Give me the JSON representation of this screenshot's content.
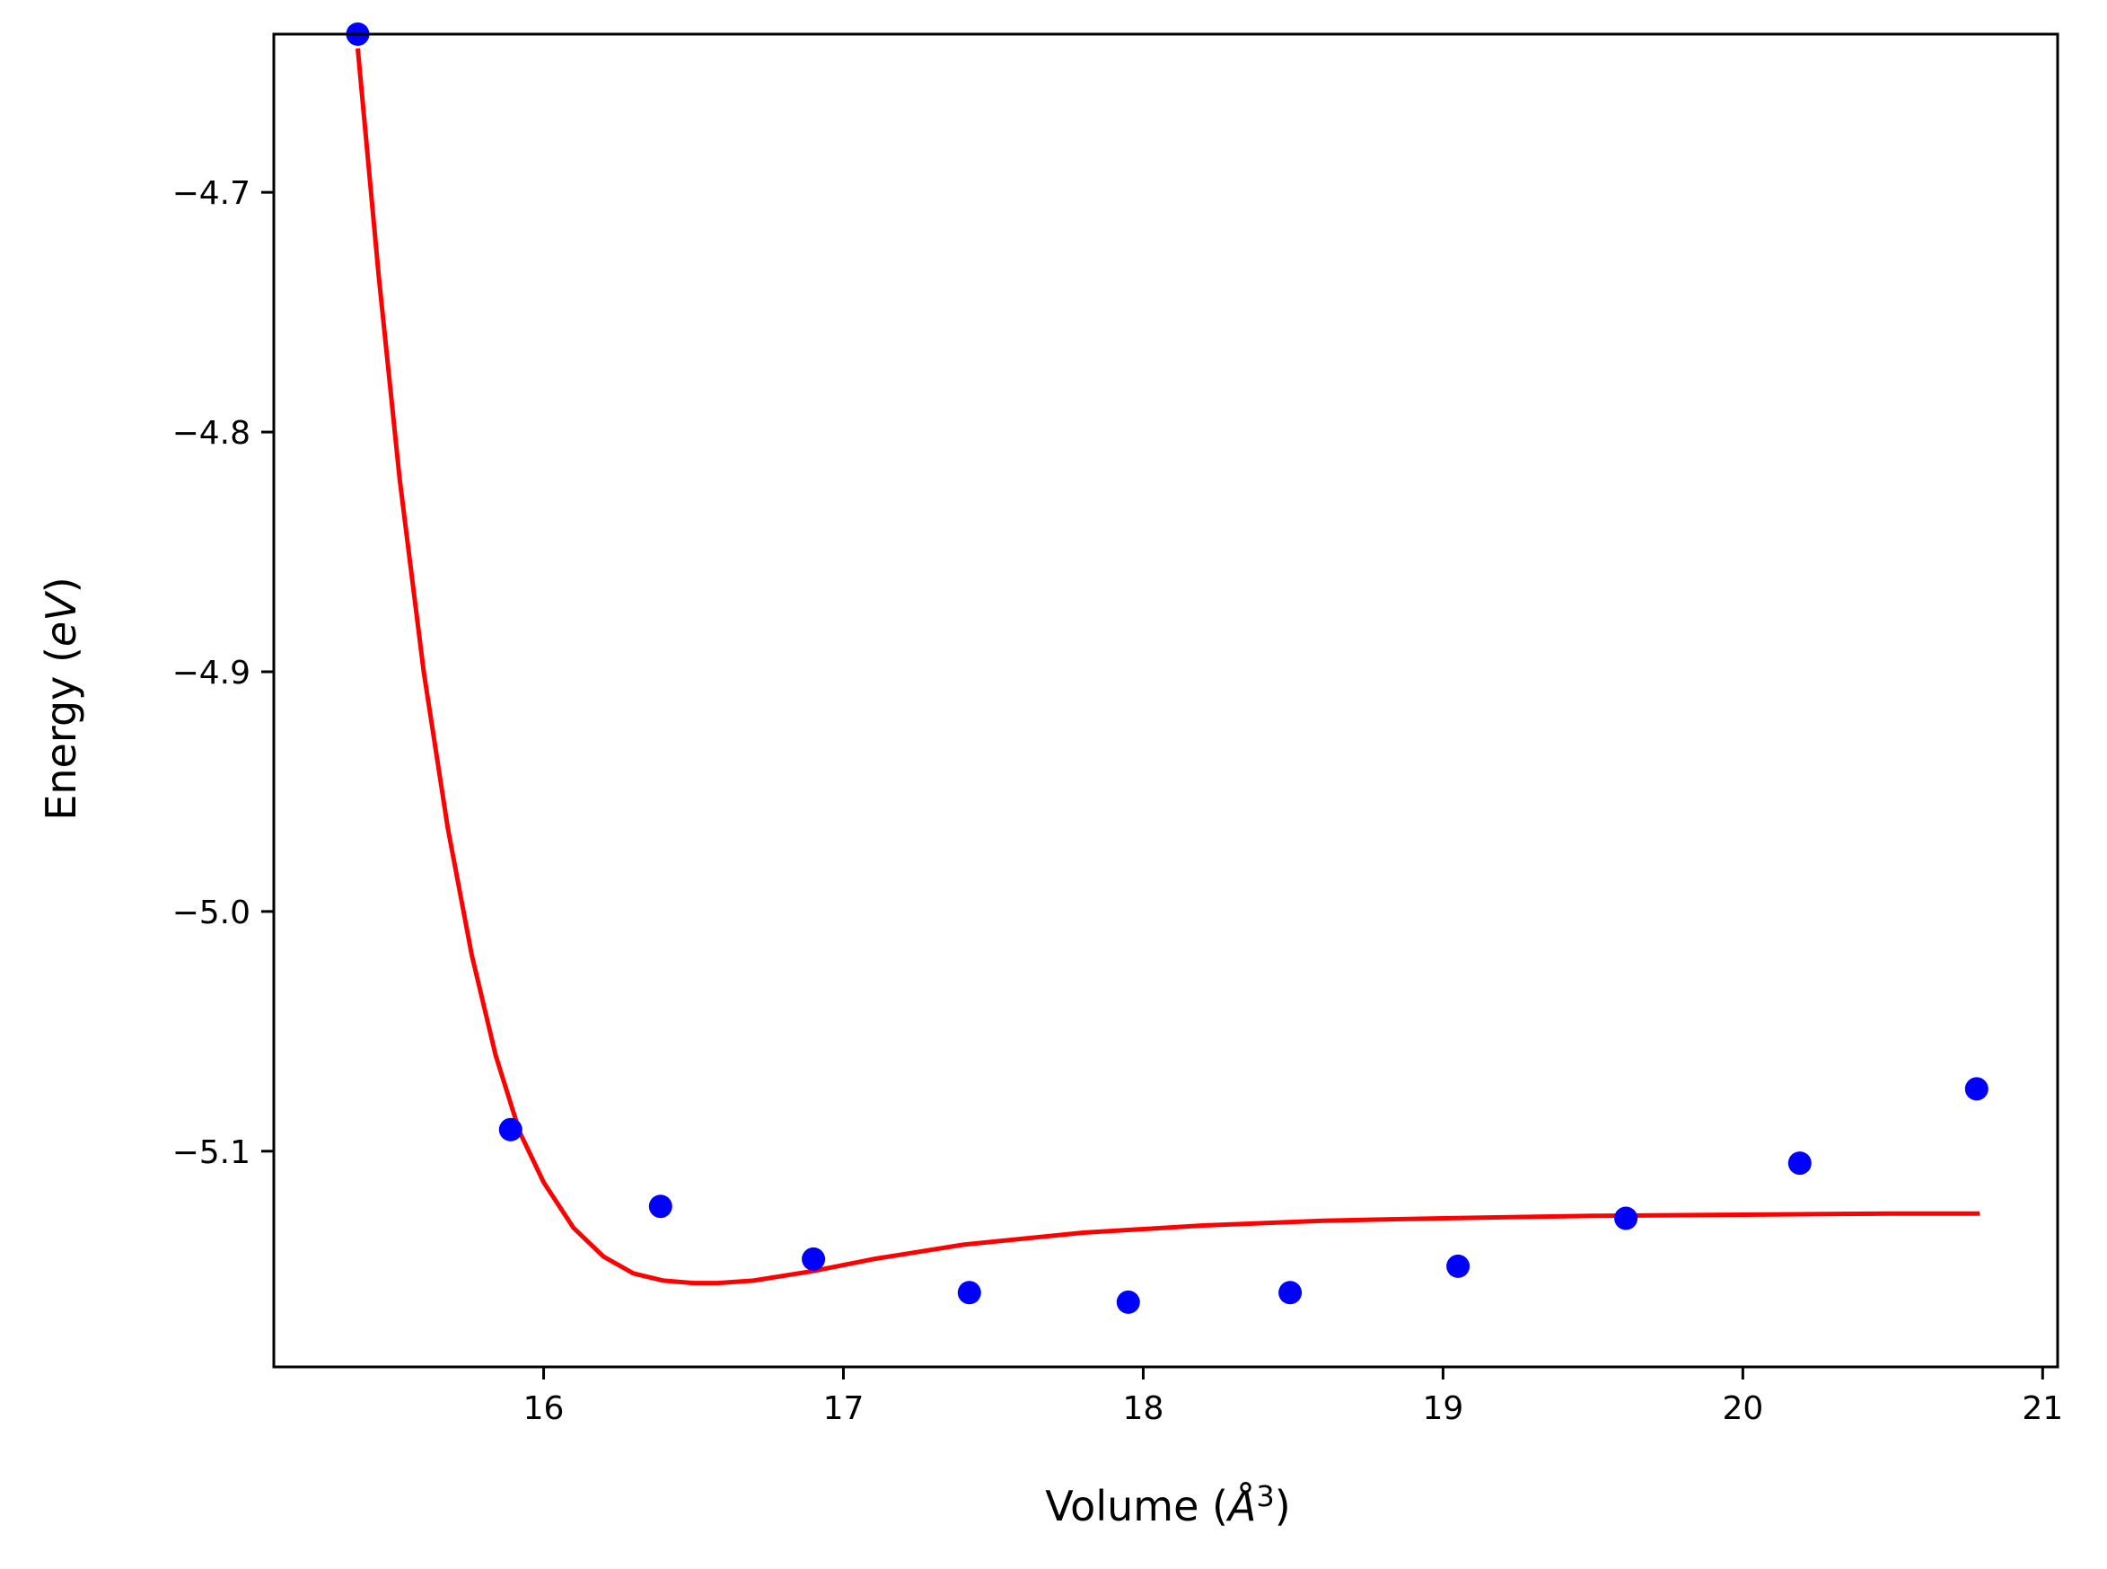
{
  "chart_data": {
    "type": "scatter",
    "title": "",
    "xlabel": "Volume (",
    "xlabel_symbol": "Å",
    "xlabel_sup": "3",
    "xlabel_close": ")",
    "ylabel": "Energy (",
    "ylabel_italic": "eV",
    "ylabel_close": ")",
    "xlim": [
      15.1,
      21.05
    ],
    "ylim": [
      -5.19,
      -4.634
    ],
    "xticks": [
      16,
      17,
      18,
      19,
      20,
      21
    ],
    "xtick_labels": [
      "16",
      "17",
      "18",
      "19",
      "20",
      "21"
    ],
    "yticks": [
      -4.7,
      -4.8,
      -4.9,
      -5.0,
      -5.1
    ],
    "ytick_labels": [
      "−4.7",
      "−4.8",
      "−4.9",
      "−5.0",
      "−5.1"
    ],
    "grid": false,
    "series": [
      {
        "kind": "scatter",
        "color": "#0000ff",
        "x": [
          15.38,
          15.89,
          16.39,
          16.9,
          17.42,
          17.95,
          18.49,
          19.05,
          19.61,
          20.19,
          20.78
        ],
        "y": [
          -4.634,
          -5.091,
          -5.123,
          -5.145,
          -5.159,
          -5.163,
          -5.159,
          -5.148,
          -5.128,
          -5.105,
          -5.074
        ]
      },
      {
        "kind": "line",
        "color": "#ff0000",
        "x": [
          15.38,
          15.45,
          15.52,
          15.6,
          15.68,
          15.76,
          15.84,
          15.92,
          16.0,
          16.1,
          16.2,
          16.3,
          16.4,
          16.5,
          16.58,
          16.7,
          16.9,
          17.1,
          17.4,
          17.8,
          18.2,
          18.6,
          19.0,
          19.5,
          20.0,
          20.5,
          20.79
        ],
        "y": [
          -4.64,
          -4.735,
          -4.82,
          -4.9,
          -4.965,
          -5.018,
          -5.06,
          -5.092,
          -5.113,
          -5.132,
          -5.144,
          -5.151,
          -5.154,
          -5.155,
          -5.155,
          -5.154,
          -5.15,
          -5.145,
          -5.139,
          -5.134,
          -5.131,
          -5.129,
          -5.128,
          -5.127,
          -5.1265,
          -5.126,
          -5.126
        ]
      }
    ]
  }
}
